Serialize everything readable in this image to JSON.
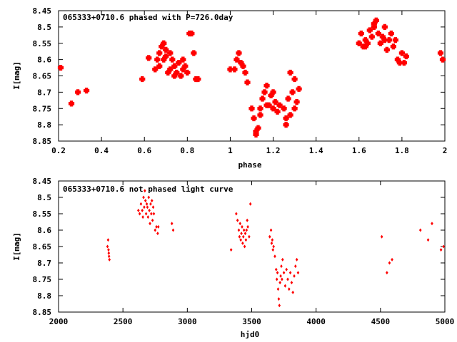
{
  "chart_data": [
    {
      "type": "scatter",
      "title": "065333+0710.6 phased with P=726.0day",
      "xlabel": "phase",
      "ylabel": "I[mag]",
      "xlim": [
        0.2,
        2.0
      ],
      "ylim": [
        8.45,
        8.85
      ],
      "y_inverted": true,
      "grid": false,
      "xticks": [
        "0.2",
        "0.4",
        "0.6",
        "0.8",
        "1",
        "1.2",
        "1.4",
        "1.6",
        "1.8",
        "2"
      ],
      "yticks": [
        "8.45",
        "8.5",
        "8.55",
        "8.6",
        "8.65",
        "8.7",
        "8.75",
        "8.8",
        "8.85"
      ],
      "marker_color": "#ff0000",
      "marker_size": "large",
      "series": [
        {
          "x": [
            0.21,
            0.26,
            0.29,
            0.33,
            0.59,
            0.62,
            0.65,
            0.66,
            0.67,
            0.68,
            0.69,
            0.69,
            0.7,
            0.71,
            0.72,
            0.72,
            0.73,
            0.74,
            0.75,
            0.76,
            0.77,
            0.78,
            0.79,
            0.8,
            0.81,
            0.82,
            0.83,
            0.84,
            0.85,
            0.67,
            0.7,
            0.74,
            0.78,
            1.0,
            1.02,
            1.03,
            1.04,
            1.05,
            1.06,
            1.07,
            1.08,
            1.1,
            1.11,
            1.12,
            1.13,
            1.14,
            1.15,
            1.16,
            1.17,
            1.18,
            1.19,
            1.2,
            1.21,
            1.22,
            1.23,
            1.12,
            1.14,
            1.17,
            1.2,
            1.25,
            1.26,
            1.27,
            1.28,
            1.29,
            1.3,
            1.31,
            1.32,
            1.26,
            1.28,
            1.3,
            1.6,
            1.61,
            1.62,
            1.63,
            1.64,
            1.65,
            1.66,
            1.67,
            1.68,
            1.69,
            1.7,
            1.71,
            1.72,
            1.73,
            1.74,
            1.75,
            1.76,
            1.77,
            1.78,
            1.79,
            1.8,
            1.81,
            1.82,
            1.63,
            1.67,
            1.72,
            1.98,
            1.99
          ],
          "y": [
            8.625,
            8.735,
            8.7,
            8.695,
            8.66,
            8.595,
            8.63,
            8.6,
            8.58,
            8.56,
            8.55,
            8.6,
            8.57,
            8.64,
            8.63,
            8.58,
            8.6,
            8.62,
            8.64,
            8.61,
            8.65,
            8.6,
            8.62,
            8.64,
            8.52,
            8.52,
            8.58,
            8.66,
            8.66,
            8.62,
            8.59,
            8.65,
            8.63,
            8.63,
            8.63,
            8.6,
            8.58,
            8.61,
            8.62,
            8.64,
            8.67,
            8.75,
            8.78,
            8.82,
            8.81,
            8.75,
            8.72,
            8.7,
            8.68,
            8.74,
            8.71,
            8.75,
            8.73,
            8.76,
            8.74,
            8.83,
            8.77,
            8.74,
            8.7,
            8.75,
            8.78,
            8.72,
            8.77,
            8.7,
            8.66,
            8.73,
            8.69,
            8.8,
            8.64,
            8.75,
            8.55,
            8.52,
            8.56,
            8.54,
            8.55,
            8.51,
            8.53,
            8.5,
            8.48,
            8.52,
            8.55,
            8.53,
            8.5,
            8.57,
            8.54,
            8.52,
            8.56,
            8.54,
            8.6,
            8.61,
            8.58,
            8.61,
            8.59,
            8.56,
            8.49,
            8.54,
            8.58,
            8.6
          ]
        }
      ]
    },
    {
      "type": "scatter",
      "title": "065333+0710.6 not phased light curve",
      "xlabel": "hjd0",
      "ylabel": "I[mag]",
      "xlim": [
        2000,
        5000
      ],
      "ylim": [
        8.45,
        8.85
      ],
      "y_inverted": true,
      "grid": false,
      "xticks": [
        "2000",
        "2500",
        "3000",
        "3500",
        "4000",
        "4500",
        "5000"
      ],
      "yticks": [
        "8.45",
        "8.5",
        "8.55",
        "8.6",
        "8.65",
        "8.7",
        "8.75",
        "8.8",
        "8.85"
      ],
      "marker_color": "#ff0000",
      "marker_size": "small",
      "series": [
        {
          "x": [
            2380,
            2385,
            2390,
            2395,
            2388,
            2392,
            2620,
            2630,
            2640,
            2650,
            2655,
            2660,
            2665,
            2670,
            2675,
            2680,
            2685,
            2690,
            2695,
            2700,
            2705,
            2710,
            2715,
            2720,
            2725,
            2730,
            2735,
            2740,
            2750,
            2760,
            2770,
            2775,
            2880,
            2890,
            3340,
            3380,
            3390,
            3400,
            3405,
            3410,
            3415,
            3420,
            3425,
            3430,
            3435,
            3440,
            3445,
            3450,
            3455,
            3460,
            3465,
            3470,
            3480,
            3490,
            3640,
            3650,
            3655,
            3660,
            3665,
            3670,
            3680,
            3690,
            3695,
            3700,
            3705,
            3710,
            3715,
            3720,
            3725,
            3730,
            3735,
            3740,
            3750,
            3760,
            3770,
            3780,
            3790,
            3800,
            3810,
            3820,
            3830,
            3840,
            3850,
            3860,
            4510,
            4550,
            4570,
            4590,
            4810,
            4870,
            4900,
            4970,
            4990
          ],
          "y": [
            8.65,
            8.63,
            8.67,
            8.69,
            8.66,
            8.68,
            8.54,
            8.55,
            8.52,
            8.54,
            8.56,
            8.5,
            8.53,
            8.48,
            8.51,
            8.55,
            8.52,
            8.53,
            8.56,
            8.5,
            8.54,
            8.58,
            8.52,
            8.55,
            8.51,
            8.57,
            8.53,
            8.55,
            8.6,
            8.59,
            8.61,
            8.59,
            8.58,
            8.6,
            8.66,
            8.55,
            8.57,
            8.6,
            8.62,
            8.58,
            8.63,
            8.61,
            8.59,
            8.64,
            8.62,
            8.6,
            8.65,
            8.61,
            8.63,
            8.6,
            8.57,
            8.59,
            8.62,
            8.52,
            8.62,
            8.6,
            8.64,
            8.63,
            8.66,
            8.65,
            8.68,
            8.72,
            8.75,
            8.73,
            8.78,
            8.81,
            8.83,
            8.76,
            8.74,
            8.71,
            8.75,
            8.69,
            8.73,
            8.77,
            8.72,
            8.75,
            8.78,
            8.73,
            8.76,
            8.79,
            8.74,
            8.71,
            8.69,
            8.73,
            8.62,
            8.73,
            8.7,
            8.69,
            8.6,
            8.63,
            8.58,
            8.66,
            8.65
          ]
        }
      ]
    }
  ]
}
